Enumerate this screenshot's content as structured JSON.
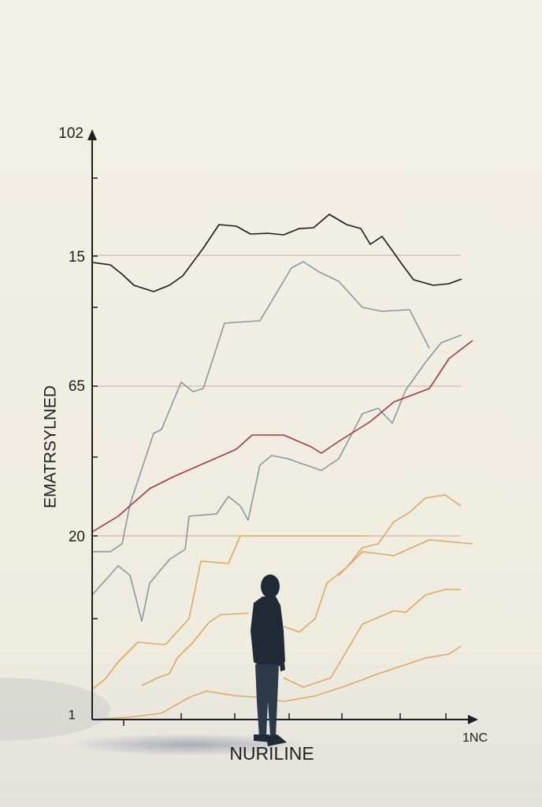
{
  "figure": {
    "y_labels": [
      "102",
      "15",
      "65",
      "20",
      "1"
    ],
    "y_axis_title": "EMATRSYLNED",
    "x_axis_title": "NURILINE",
    "x_end_label": "1NC"
  }
}
